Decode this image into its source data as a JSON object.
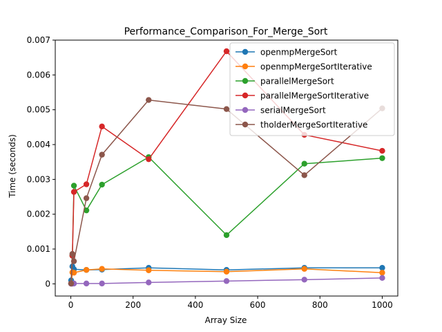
{
  "chart_data": {
    "type": "line",
    "title": "Performance_Comparison_For_Merge_Sort",
    "xlabel": "Array Size",
    "ylabel": "Time (seconds)",
    "xlim": [
      -50,
      1050
    ],
    "ylim": [
      -0.00035,
      0.007
    ],
    "xticks": [
      0,
      200,
      400,
      600,
      800,
      1000
    ],
    "xtick_labels": [
      "0",
      "200",
      "400",
      "600",
      "800",
      "1000"
    ],
    "yticks": [
      0,
      0.001,
      0.002,
      0.003,
      0.004,
      0.005,
      0.006,
      0.007
    ],
    "ytick_labels": [
      "0",
      "0.001",
      "0.002",
      "0.003",
      "0.004",
      "0.005",
      "0.006",
      "0.007"
    ],
    "grid": false,
    "legend_position": "top-right",
    "x": [
      1,
      5,
      10,
      50,
      100,
      250,
      500,
      750,
      1000
    ],
    "series": [
      {
        "name": "openmpMergeSort",
        "color": "#1f77b4",
        "values": [
          0.0001,
          0.0005,
          0.00042,
          0.0004,
          0.00041,
          0.00046,
          0.0004,
          0.00046,
          0.00046
        ]
      },
      {
        "name": "openmpMergeSortIterative",
        "color": "#ff7f0e",
        "values": [
          1e-05,
          0.00033,
          0.00032,
          0.0004,
          0.00043,
          0.00039,
          0.00035,
          0.00043,
          0.00032
        ]
      },
      {
        "name": "parallelMergeSort",
        "color": "#2ca02c",
        "values": [
          1e-05,
          0.00081,
          0.00282,
          0.00211,
          0.00285,
          0.00364,
          0.0014,
          0.00345,
          0.00361
        ]
      },
      {
        "name": "parallelMergeSortIterative",
        "color": "#d62728",
        "values": [
          1e-05,
          0.00081,
          0.00264,
          0.00286,
          0.00452,
          0.00358,
          0.00668,
          0.00428,
          0.00382
        ]
      },
      {
        "name": "serialMergeSort",
        "color": "#9467bd",
        "values": [
          5e-06,
          5e-06,
          1e-05,
          1e-05,
          1e-05,
          4e-05,
          8e-05,
          0.00012,
          0.00017
        ]
      },
      {
        "name": "tholderMergeSortIterative",
        "color": "#8c564b",
        "values": [
          1e-05,
          0.00086,
          0.00065,
          0.00246,
          0.00371,
          0.00528,
          0.00502,
          0.00312,
          0.00504
        ]
      }
    ]
  }
}
